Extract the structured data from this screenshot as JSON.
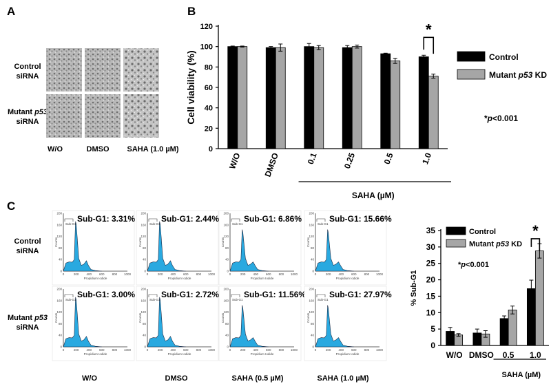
{
  "panels": {
    "a_letter": "A",
    "b_letter": "B",
    "c_letter": "C"
  },
  "micrographs": {
    "row_labels": [
      {
        "line1": "Control",
        "line2": "siRNA"
      },
      {
        "line1": "Mutant p53",
        "line2": "siRNA"
      }
    ],
    "col_labels": [
      "W/O",
      "DMSO",
      "SAHA (1.0 µM)"
    ]
  },
  "flow": {
    "row_labels": [
      {
        "line1": "Control",
        "line2": "siRNA"
      },
      {
        "line1": "Mutant p53",
        "line2": "siRNA"
      }
    ],
    "col_labels": [
      "W/O",
      "DMSO",
      "SAHA (0.5 µM)",
      "SAHA (1.0 µM)"
    ],
    "subg1": [
      [
        "Sub-G1: 3.31%",
        "Sub-G1: 2.44%",
        "Sub-G1: 6.86%",
        "Sub-G1: 15.66%"
      ],
      [
        "Sub-G1: 3.00%",
        "Sub-G1: 2.72%",
        "Sub-G1: 11.56%",
        "Sub-G1: 27.97%"
      ]
    ],
    "gate_label": "Sub-G1",
    "ylabel": "Counts",
    "xlabel": "Propidium Iodide",
    "yticks": [
      "0",
      "40",
      "80",
      "120",
      "160",
      "200"
    ],
    "xticks": [
      "0",
      "200",
      "400",
      "600",
      "800",
      "1000"
    ],
    "fill_color": "#29a9e0"
  },
  "chart_data": [
    {
      "id": "viability",
      "type": "bar",
      "ylabel": "Cell viability (%)",
      "ylim": [
        0,
        120
      ],
      "yticks": [
        0,
        20,
        40,
        60,
        80,
        100,
        120
      ],
      "categories": [
        "W/O",
        "DMSO",
        "0.1",
        "0.25",
        "0.5",
        "1.0"
      ],
      "group_label": "SAHA (µM)",
      "series": [
        {
          "name": "Control",
          "color": "#000000",
          "values": [
            100,
            99,
            100,
            99,
            93,
            90
          ],
          "errors": [
            0.5,
            1,
            3,
            2,
            0.5,
            1.5
          ]
        },
        {
          "name": "Mutant p53 KD",
          "color": "#a6a6a6",
          "values": [
            100,
            99,
            99,
            100,
            86,
            71
          ],
          "errors": [
            0.5,
            3.5,
            2,
            1.5,
            2.5,
            2
          ]
        }
      ],
      "significance": "*",
      "pvalue_note": "*p<0.001"
    },
    {
      "id": "subg1",
      "type": "bar",
      "ylabel": "% Sub-G1",
      "ylim": [
        0,
        35
      ],
      "yticks": [
        0,
        5,
        10,
        15,
        20,
        25,
        30,
        35
      ],
      "categories": [
        "W/O",
        "DMSO",
        "0.5",
        "1.0"
      ],
      "group_label": "SAHA (µM)",
      "series": [
        {
          "name": "Control",
          "color": "#000000",
          "values": [
            4.3,
            3.8,
            8.2,
            17.3
          ],
          "errors": [
            1.2,
            1.2,
            0.8,
            2.6
          ]
        },
        {
          "name": "Mutant p53 KD",
          "color": "#a6a6a6",
          "values": [
            3.2,
            3.5,
            10.8,
            28.8
          ],
          "errors": [
            0.4,
            1.0,
            1.2,
            2.2
          ]
        }
      ],
      "significance": "*",
      "pvalue_note": "*p<0.001"
    }
  ]
}
